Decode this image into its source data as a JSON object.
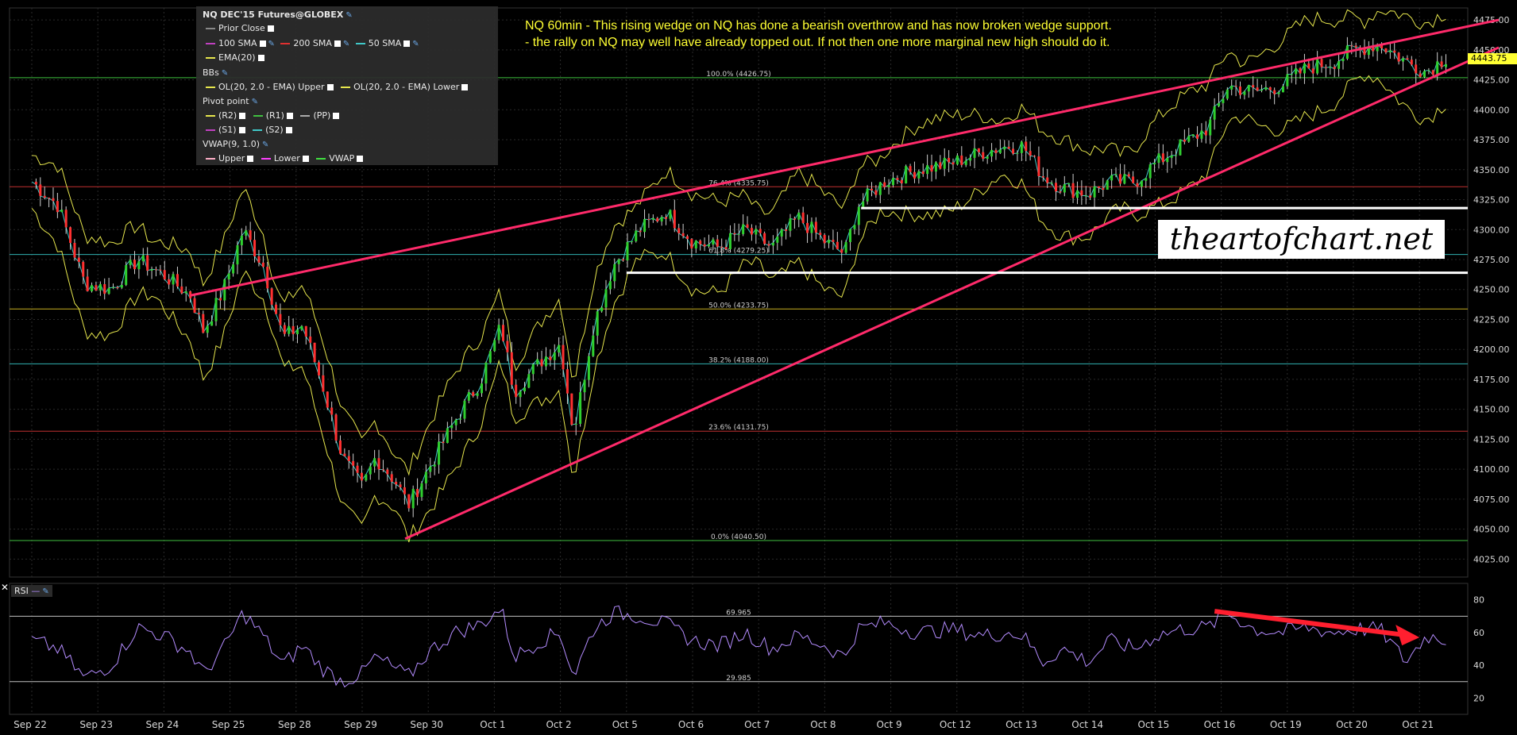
{
  "legend": {
    "title": "NQ DEC'15 Futures@GLOBEX",
    "prior_close": "Prior Close",
    "sma_100": "100 SMA",
    "sma_200": "200 SMA",
    "sma_50": "50 SMA",
    "ema": "EMA(20)",
    "bbs": "BBs",
    "bb_upper": "OL(20, 2.0 - EMA) Upper",
    "bb_lower": "OL(20, 2.0 - EMA) Lower",
    "pivot": "Pivot point",
    "r2": "(R2)",
    "r1": "(R1)",
    "pp": "(PP)",
    "s1": "(S1)",
    "s2": "(S2)",
    "vwap_title": "VWAP(9, 1.0)",
    "vwap_upper": "Upper",
    "vwap_lower": "Lower",
    "vwap": "VWAP",
    "colors": {
      "sma100": "#c040c0",
      "sma200": "#e03030",
      "sma50": "#40c8c8",
      "ema": "#e6e64d",
      "bb": "#e6e64d",
      "r2": "#e6e64d",
      "r1": "#40c040",
      "pp": "#aaaaaa",
      "s1": "#c040c0",
      "s2": "#40c8c8",
      "vwap_upper": "#ffb0c8",
      "vwap_lower": "#ff40ff",
      "vwap": "#40e040"
    }
  },
  "annotation": {
    "line1": "NQ 60min - This rising wedge on NQ has done a bearish overthrow and has now broken wedge support.",
    "line2": "- the rally on NQ may well have already topped out. If not then one more marginal new high should do it."
  },
  "watermark": "theartofchart.net",
  "last_price": "4443.75",
  "rsi_panel": {
    "label": "RSI",
    "upper_level": "69.965",
    "lower_level": "29.985"
  },
  "chart_data": {
    "type": "candlestick",
    "symbol": "NQ DEC'15 Futures@GLOBEX",
    "timeframe": "60min",
    "x_labels": [
      "Sep 22",
      "Sep 23",
      "Sep 24",
      "Sep 25",
      "Sep 28",
      "Sep 29",
      "Sep 30",
      "Oct 1",
      "Oct 2",
      "Oct 5",
      "Oct 6",
      "Oct 7",
      "Oct 8",
      "Oct 9",
      "Oct 12",
      "Oct 13",
      "Oct 14",
      "Oct 15",
      "Oct 16",
      "Oct 19",
      "Oct 20",
      "Oct 21"
    ],
    "y_ticks": [
      4025,
      4050,
      4075,
      4100,
      4125,
      4150,
      4175,
      4200,
      4225,
      4250,
      4275,
      4300,
      4325,
      4350,
      4375,
      4400,
      4425,
      4450,
      4475
    ],
    "ylim": [
      4010,
      4485
    ],
    "close_path": [
      [
        0,
        4340
      ],
      [
        0.4,
        4320
      ],
      [
        0.8,
        4255
      ],
      [
        1.2,
        4250
      ],
      [
        1.6,
        4275
      ],
      [
        2.0,
        4262
      ],
      [
        2.4,
        4245
      ],
      [
        2.6,
        4215
      ],
      [
        2.9,
        4250
      ],
      [
        3.2,
        4300
      ],
      [
        3.5,
        4270
      ],
      [
        3.8,
        4210
      ],
      [
        4.1,
        4220
      ],
      [
        4.4,
        4170
      ],
      [
        4.7,
        4110
      ],
      [
        5.0,
        4085
      ],
      [
        5.2,
        4110
      ],
      [
        5.5,
        4090
      ],
      [
        5.7,
        4070
      ],
      [
        6.0,
        4100
      ],
      [
        6.4,
        4140
      ],
      [
        6.8,
        4175
      ],
      [
        7.1,
        4220
      ],
      [
        7.3,
        4165
      ],
      [
        7.7,
        4190
      ],
      [
        8.0,
        4205
      ],
      [
        8.2,
        4130
      ],
      [
        8.5,
        4220
      ],
      [
        8.8,
        4270
      ],
      [
        9.2,
        4300
      ],
      [
        9.6,
        4315
      ],
      [
        10.0,
        4290
      ],
      [
        10.4,
        4285
      ],
      [
        10.8,
        4300
      ],
      [
        11.2,
        4285
      ],
      [
        11.6,
        4310
      ],
      [
        12.0,
        4290
      ],
      [
        12.3,
        4280
      ],
      [
        12.5,
        4320
      ],
      [
        12.9,
        4340
      ],
      [
        13.4,
        4350
      ],
      [
        13.9,
        4355
      ],
      [
        14.4,
        4365
      ],
      [
        14.8,
        4370
      ],
      [
        15.0,
        4370
      ],
      [
        15.3,
        4345
      ],
      [
        15.6,
        4335
      ],
      [
        16.0,
        4330
      ],
      [
        16.3,
        4340
      ],
      [
        16.7,
        4340
      ],
      [
        17.0,
        4355
      ],
      [
        17.4,
        4370
      ],
      [
        17.8,
        4385
      ],
      [
        18.1,
        4420
      ],
      [
        18.5,
        4415
      ],
      [
        18.9,
        4420
      ],
      [
        19.3,
        4435
      ],
      [
        19.7,
        4440
      ],
      [
        20.0,
        4450
      ],
      [
        20.4,
        4455
      ],
      [
        20.8,
        4440
      ],
      [
        21.1,
        4432
      ],
      [
        21.4,
        4443.75
      ]
    ],
    "fib_levels": [
      {
        "label": "100.0% (4426.75)",
        "value": 4426.75,
        "color": "#3fbf3f"
      },
      {
        "label": "76.4% (4335.75)",
        "value": 4335.75,
        "color": "#c03030"
      },
      {
        "label": "61.8% (4279.25)",
        "value": 4279.25,
        "color": "#30b0b0"
      },
      {
        "label": "50.0% (4233.75)",
        "value": 4233.75,
        "color": "#c8b020"
      },
      {
        "label": "38.2% (4188.00)",
        "value": 4188.0,
        "color": "#30b0b0"
      },
      {
        "label": "23.6% (4131.75)",
        "value": 4131.75,
        "color": "#c03030"
      },
      {
        "label": "0.0% (4040.50)",
        "value": 4040.5,
        "color": "#3fbf3f"
      }
    ],
    "wedge_lines": [
      {
        "name": "wedge-resistance",
        "from": [
          2.4,
          4245
        ],
        "to": [
          22.2,
          4475
        ],
        "color": "#ff2a6a"
      },
      {
        "name": "wedge-support",
        "from": [
          5.65,
          4042
        ],
        "to": [
          22.2,
          4452
        ],
        "color": "#ff2a6a"
      }
    ],
    "support_lines": [
      {
        "name": "support-upper",
        "from": [
          12.55,
          4318
        ],
        "to": [
          22.6,
          4318
        ],
        "color": "#ffffff"
      },
      {
        "name": "support-lower",
        "from": [
          9.0,
          4264
        ],
        "to": [
          22.6,
          4264
        ],
        "color": "#ffffff"
      }
    ],
    "rsi": {
      "ylim": [
        10,
        90
      ],
      "y_ticks": [
        20,
        40,
        60,
        80
      ],
      "levels": [
        69.965,
        29.985
      ],
      "path": [
        [
          0,
          55
        ],
        [
          0.4,
          50
        ],
        [
          0.8,
          32
        ],
        [
          1.2,
          40
        ],
        [
          1.6,
          63
        ],
        [
          2.0,
          58
        ],
        [
          2.4,
          48
        ],
        [
          2.6,
          35
        ],
        [
          2.9,
          50
        ],
        [
          3.2,
          72
        ],
        [
          3.5,
          58
        ],
        [
          3.8,
          40
        ],
        [
          4.1,
          52
        ],
        [
          4.4,
          38
        ],
        [
          4.7,
          30
        ],
        [
          5.0,
          35
        ],
        [
          5.2,
          45
        ],
        [
          5.5,
          38
        ],
        [
          5.7,
          33
        ],
        [
          6.0,
          48
        ],
        [
          6.4,
          60
        ],
        [
          6.8,
          65
        ],
        [
          7.1,
          75
        ],
        [
          7.3,
          45
        ],
        [
          7.7,
          55
        ],
        [
          8.0,
          60
        ],
        [
          8.2,
          33
        ],
        [
          8.5,
          62
        ],
        [
          8.8,
          72
        ],
        [
          9.2,
          70
        ],
        [
          9.6,
          65
        ],
        [
          10.0,
          55
        ],
        [
          10.4,
          52
        ],
        [
          10.8,
          60
        ],
        [
          11.2,
          50
        ],
        [
          11.6,
          58
        ],
        [
          12.0,
          52
        ],
        [
          12.3,
          45
        ],
        [
          12.5,
          62
        ],
        [
          12.9,
          66
        ],
        [
          13.4,
          60
        ],
        [
          13.9,
          62
        ],
        [
          14.4,
          58
        ],
        [
          14.8,
          60
        ],
        [
          15.0,
          58
        ],
        [
          15.3,
          42
        ],
        [
          15.6,
          50
        ],
        [
          16.0,
          42
        ],
        [
          16.3,
          55
        ],
        [
          16.7,
          50
        ],
        [
          17.0,
          58
        ],
        [
          17.4,
          62
        ],
        [
          17.8,
          63
        ],
        [
          18.1,
          72
        ],
        [
          18.5,
          62
        ],
        [
          18.9,
          60
        ],
        [
          19.3,
          63
        ],
        [
          19.7,
          60
        ],
        [
          20.0,
          62
        ],
        [
          20.4,
          62
        ],
        [
          20.8,
          42
        ],
        [
          21.1,
          58
        ],
        [
          21.4,
          56
        ]
      ],
      "arrow": {
        "from": [
          17.9,
          73
        ],
        "to": [
          21.0,
          57
        ],
        "color": "#ff1f2f"
      }
    }
  }
}
